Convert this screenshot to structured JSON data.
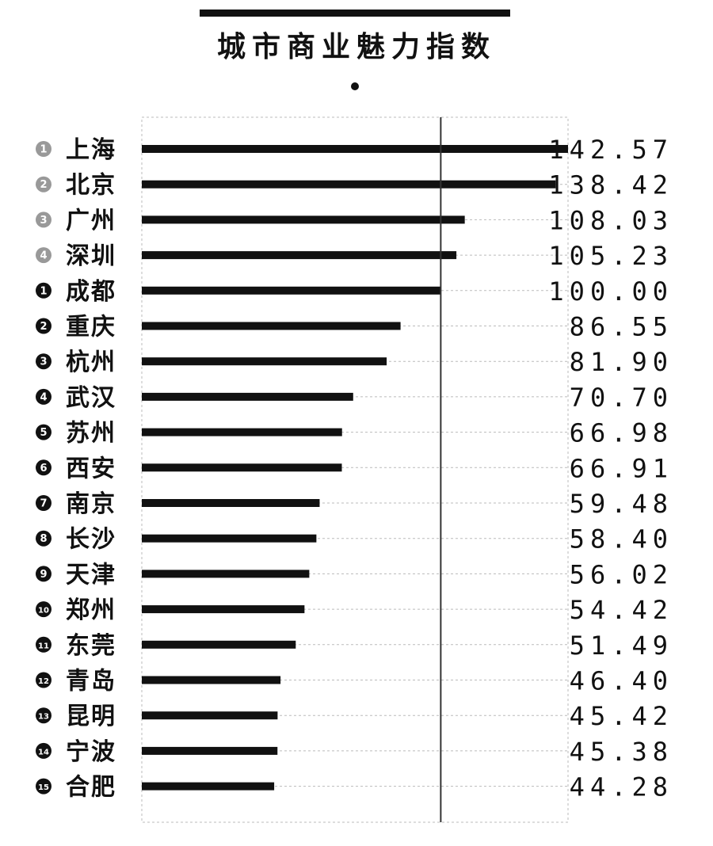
{
  "chart_data": {
    "type": "bar",
    "orientation": "horizontal",
    "title": "城市商业魅力指数",
    "reference_line": 100,
    "xlim": [
      0,
      142.57
    ],
    "grid": true,
    "colors": {
      "bar": "#111111",
      "badge_top4": "#999999",
      "badge_rest": "#111111",
      "grid": "#bbbbbb",
      "reference": "#333333"
    },
    "rows": [
      {
        "rank": "1",
        "city": "上海",
        "value": 142.57,
        "label": "142.57",
        "group": "top"
      },
      {
        "rank": "2",
        "city": "北京",
        "value": 138.42,
        "label": "138.42",
        "group": "top"
      },
      {
        "rank": "3",
        "city": "广州",
        "value": 108.03,
        "label": "108.03",
        "group": "top"
      },
      {
        "rank": "4",
        "city": "深圳",
        "value": 105.23,
        "label": "105.23",
        "group": "top"
      },
      {
        "rank": "1",
        "city": "成都",
        "value": 100.0,
        "label": "100.00",
        "group": "new"
      },
      {
        "rank": "2",
        "city": "重庆",
        "value": 86.55,
        "label": "86.55",
        "group": "new"
      },
      {
        "rank": "3",
        "city": "杭州",
        "value": 81.9,
        "label": "81.90",
        "group": "new"
      },
      {
        "rank": "4",
        "city": "武汉",
        "value": 70.7,
        "label": "70.70",
        "group": "new"
      },
      {
        "rank": "5",
        "city": "苏州",
        "value": 66.98,
        "label": "66.98",
        "group": "new"
      },
      {
        "rank": "6",
        "city": "西安",
        "value": 66.91,
        "label": "66.91",
        "group": "new"
      },
      {
        "rank": "7",
        "city": "南京",
        "value": 59.48,
        "label": "59.48",
        "group": "new"
      },
      {
        "rank": "8",
        "city": "长沙",
        "value": 58.4,
        "label": "58.40",
        "group": "new"
      },
      {
        "rank": "9",
        "city": "天津",
        "value": 56.02,
        "label": "56.02",
        "group": "new"
      },
      {
        "rank": "10",
        "city": "郑州",
        "value": 54.42,
        "label": "54.42",
        "group": "new"
      },
      {
        "rank": "11",
        "city": "东莞",
        "value": 51.49,
        "label": "51.49",
        "group": "new"
      },
      {
        "rank": "12",
        "city": "青岛",
        "value": 46.4,
        "label": "46.40",
        "group": "new"
      },
      {
        "rank": "13",
        "city": "昆明",
        "value": 45.42,
        "label": "45.42",
        "group": "new"
      },
      {
        "rank": "14",
        "city": "宁波",
        "value": 45.38,
        "label": "45.38",
        "group": "new"
      },
      {
        "rank": "15",
        "city": "合肥",
        "value": 44.28,
        "label": "44.28",
        "group": "new"
      }
    ]
  }
}
